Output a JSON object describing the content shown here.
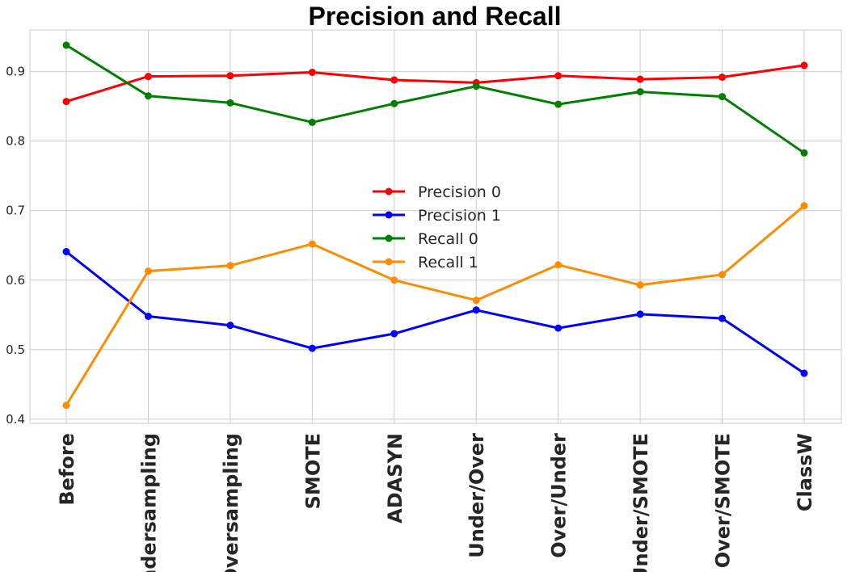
{
  "chart_data": {
    "type": "line",
    "title": "Precision and Recall",
    "xlabel": "",
    "ylabel": "",
    "categories": [
      "Before",
      "Undersampling",
      "Oversampling",
      "SMOTE",
      "ADASYN",
      "Under/Over",
      "Over/Under",
      "Under/SMOTE",
      "Over/SMOTE",
      "ClassW"
    ],
    "yticks": [
      "0.4",
      "0.5",
      "0.6",
      "0.7",
      "0.8",
      "0.9"
    ],
    "ylim": [
      0.394,
      0.96
    ],
    "grid": true,
    "legend_position": "center",
    "series": [
      {
        "name": "Precision 0",
        "color": "#ff0000",
        "values": [
          0.857,
          0.893,
          0.894,
          0.899,
          0.888,
          0.884,
          0.894,
          0.889,
          0.892,
          0.909
        ]
      },
      {
        "name": "Precision 1",
        "color": "#0000ff",
        "values": [
          0.641,
          0.548,
          0.535,
          0.502,
          0.523,
          0.557,
          0.531,
          0.551,
          0.545,
          0.466
        ]
      },
      {
        "name": "Recall 0",
        "color": "#008000",
        "values": [
          0.938,
          0.865,
          0.855,
          0.827,
          0.854,
          0.879,
          0.853,
          0.871,
          0.864,
          0.783
        ]
      },
      {
        "name": "Recall 1",
        "color": "#ff8c00",
        "values": [
          0.42,
          0.613,
          0.621,
          0.652,
          0.6,
          0.571,
          0.622,
          0.593,
          0.608,
          0.707
        ]
      }
    ]
  }
}
